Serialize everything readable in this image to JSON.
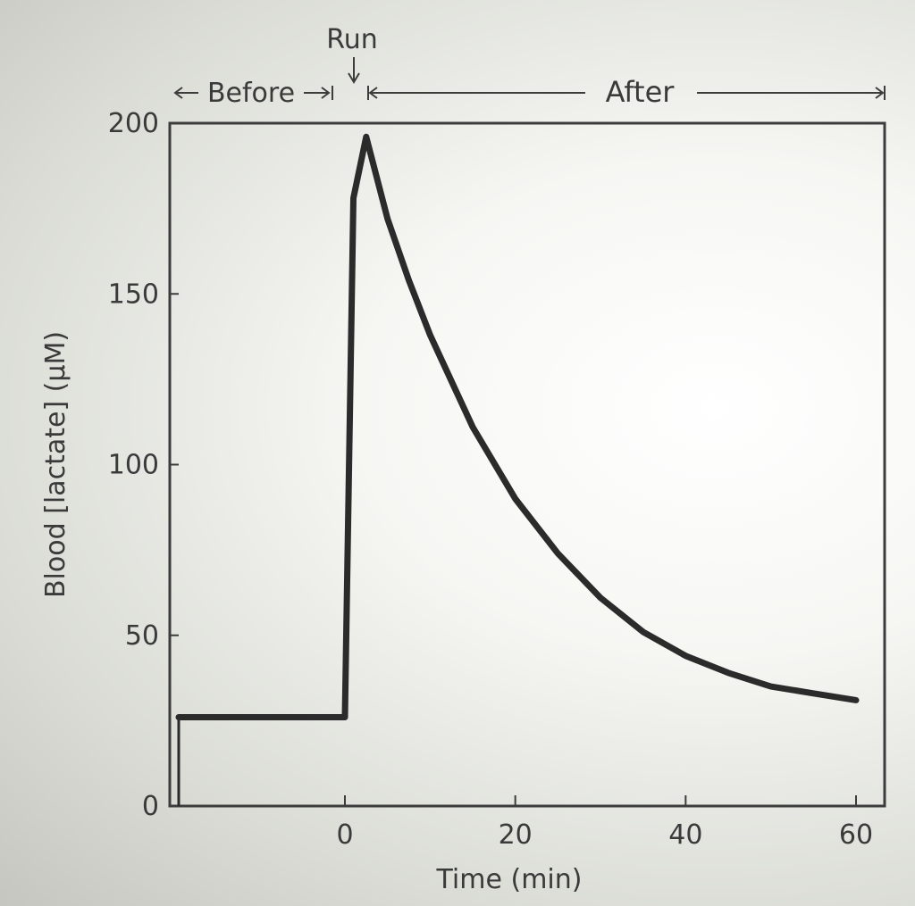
{
  "chart_data": {
    "type": "line",
    "title": "",
    "xlabel": "Time (min)",
    "ylabel": "Blood [lactate] (μM)",
    "xlim": [
      -20,
      60
    ],
    "ylim": [
      0,
      200
    ],
    "xticks": [
      0,
      20,
      40,
      60
    ],
    "yticks": [
      0,
      50,
      100,
      150,
      200
    ],
    "grid": false,
    "legend": "none",
    "annotations": {
      "run": "Run",
      "before": "Before",
      "after": "After"
    },
    "series": [
      {
        "name": "Blood lactate",
        "x": [
          -20,
          0,
          0,
          1,
          2.5,
          5,
          7.5,
          10,
          15,
          20,
          25,
          30,
          35,
          40,
          45,
          50,
          55,
          60
        ],
        "y": [
          26,
          26,
          26,
          178,
          196,
          172,
          154,
          138,
          111,
          90,
          74,
          61,
          51,
          44,
          39,
          35,
          33,
          31
        ]
      }
    ]
  }
}
